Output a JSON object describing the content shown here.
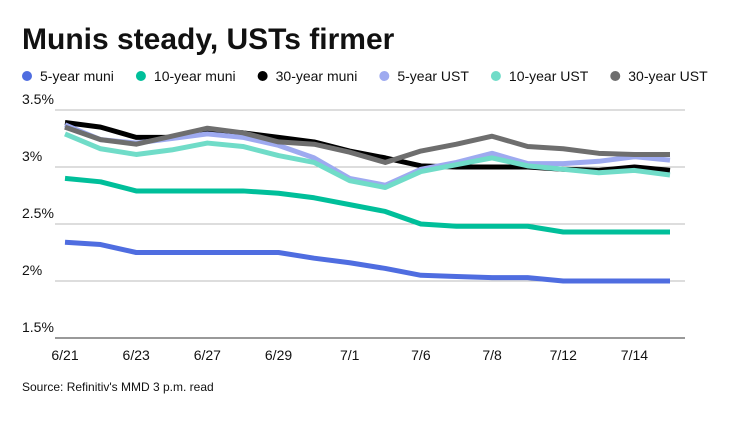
{
  "chart_data": {
    "type": "line",
    "title": "Munis steady, USTs firmer",
    "source": "Source: Refinitiv's MMD 3 p.m. read",
    "categories": [
      "6/21",
      null,
      "6/23",
      null,
      "6/27",
      null,
      "6/29",
      null,
      "7/1",
      null,
      "7/6",
      null,
      "7/8",
      null,
      "7/12",
      null,
      "7/14",
      null
    ],
    "ylim": [
      1.5,
      3.5
    ],
    "yticks": [
      {
        "value": 1.5,
        "label": "1.5%"
      },
      {
        "value": 2,
        "label": "2%"
      },
      {
        "value": 2.5,
        "label": "2.5%"
      },
      {
        "value": 3,
        "label": "3%"
      },
      {
        "value": 3.5,
        "label": "3.5%"
      }
    ],
    "grid": true,
    "series": [
      {
        "name": "5-year muni",
        "color": "#4f6de0",
        "values": [
          2.34,
          2.32,
          2.25,
          2.25,
          2.25,
          2.25,
          2.25,
          2.2,
          2.16,
          2.11,
          2.05,
          2.04,
          2.03,
          2.03,
          2.0,
          2.0,
          2.0,
          2.0
        ]
      },
      {
        "name": "10-year muni",
        "color": "#00bf9a",
        "values": [
          2.9,
          2.87,
          2.79,
          2.79,
          2.79,
          2.79,
          2.77,
          2.73,
          2.67,
          2.61,
          2.5,
          2.48,
          2.48,
          2.48,
          2.43,
          2.43,
          2.43,
          2.43
        ]
      },
      {
        "name": "30-year muni",
        "color": "#000000",
        "values": [
          3.39,
          3.35,
          3.26,
          3.26,
          3.3,
          3.3,
          3.26,
          3.22,
          3.14,
          3.08,
          3.01,
          3.0,
          3.0,
          3.0,
          2.98,
          2.97,
          3.0,
          2.97
        ]
      },
      {
        "name": "5-year UST",
        "color": "#9eaaf0",
        "values": [
          3.37,
          3.24,
          3.21,
          3.25,
          3.29,
          3.26,
          3.19,
          3.08,
          2.9,
          2.84,
          2.98,
          3.04,
          3.12,
          3.03,
          3.03,
          3.05,
          3.09,
          3.06
        ]
      },
      {
        "name": "10-year UST",
        "color": "#70dcc8",
        "values": [
          3.29,
          3.16,
          3.11,
          3.15,
          3.21,
          3.18,
          3.1,
          3.04,
          2.88,
          2.82,
          2.96,
          3.02,
          3.08,
          3.01,
          2.98,
          2.95,
          2.97,
          2.93
        ]
      },
      {
        "name": "30-year UST",
        "color": "#6e6e6e",
        "values": [
          3.35,
          3.24,
          3.2,
          3.27,
          3.34,
          3.3,
          3.22,
          3.2,
          3.13,
          3.04,
          3.14,
          3.2,
          3.27,
          3.18,
          3.16,
          3.12,
          3.11,
          3.11
        ]
      }
    ]
  }
}
